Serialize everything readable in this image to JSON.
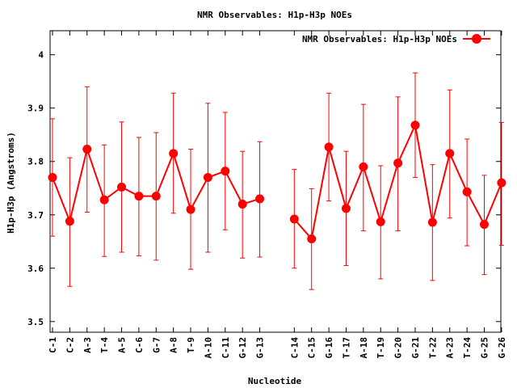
{
  "chart_data": {
    "type": "line",
    "title": "NMR Observables: H1p-H3p NOEs",
    "xlabel": "Nucleotide",
    "ylabel": "H1p-H3p (Angstroms)",
    "ylim": [
      3.48,
      4.045
    ],
    "yticks": [
      3.5,
      3.6,
      3.7,
      3.8,
      3.9,
      4
    ],
    "ytick_labels": [
      "3.5",
      "3.6",
      "3.7",
      "3.8",
      "3.9",
      "4"
    ],
    "legend": {
      "label": "NMR Observables: H1p-H3p NOEs",
      "position": "top-right"
    },
    "grid": false,
    "colors": {
      "series": "#ff0000",
      "text": "#000000",
      "axis": "#000000"
    },
    "series": [
      {
        "name": "NMR Observables: H1p-H3p NOEs",
        "segments": [
          {
            "categories": [
              "C-1",
              "C-2",
              "A-3",
              "T-4",
              "A-5",
              "C-6",
              "G-7",
              "A-8",
              "T-9",
              "A-10",
              "C-11",
              "G-12",
              "G-13"
            ],
            "values": [
              3.77,
              3.688,
              3.823,
              3.728,
              3.752,
              3.735,
              3.735,
              3.815,
              3.71,
              3.77,
              3.782,
              3.72,
              3.73
            ],
            "err_low": [
              3.66,
              3.566,
              3.705,
              3.622,
              3.63,
              3.623,
              3.615,
              3.703,
              3.598,
              3.63,
              3.672,
              3.619,
              3.621
            ],
            "err_high": [
              3.88,
              3.807,
              3.94,
              3.831,
              3.874,
              3.845,
              3.854,
              3.928,
              3.823,
              3.909,
              3.892,
              3.819,
              3.837
            ]
          },
          {
            "categories": [
              "C-14",
              "C-15",
              "G-16",
              "T-17",
              "A-18",
              "T-19",
              "G-20",
              "G-21",
              "T-22",
              "A-23",
              "T-24",
              "G-25",
              "G-26"
            ],
            "values": [
              3.692,
              3.655,
              3.827,
              3.712,
              3.79,
              3.687,
              3.797,
              3.868,
              3.686,
              3.815,
              3.743,
              3.682,
              3.76
            ],
            "err_low": [
              3.6,
              3.56,
              3.726,
              3.605,
              3.67,
              3.58,
              3.67,
              3.77,
              3.577,
              3.694,
              3.642,
              3.588,
              3.643
            ],
            "err_high": [
              3.785,
              3.749,
              3.928,
              3.819,
              3.907,
              3.792,
              3.921,
              3.966,
              3.794,
              3.934,
              3.842,
              3.774,
              3.873
            ]
          }
        ]
      }
    ]
  }
}
